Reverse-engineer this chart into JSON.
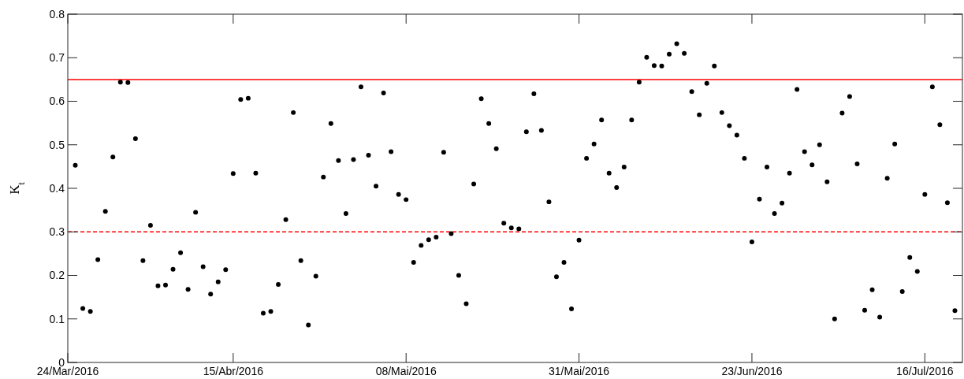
{
  "chart_data": {
    "type": "scatter",
    "ylabel": "K$_{t}$",
    "marker": "circle",
    "grid": false,
    "x": [
      "2016-03-25",
      "2016-03-26",
      "2016-03-27",
      "2016-03-28",
      "2016-03-29",
      "2016-03-30",
      "2016-03-31",
      "2016-04-01",
      "2016-04-02",
      "2016-04-03",
      "2016-04-04",
      "2016-04-05",
      "2016-04-06",
      "2016-04-07",
      "2016-04-08",
      "2016-04-09",
      "2016-04-10",
      "2016-04-11",
      "2016-04-12",
      "2016-04-13",
      "2016-04-14",
      "2016-04-15",
      "2016-04-16",
      "2016-04-17",
      "2016-04-18",
      "2016-04-19",
      "2016-04-20",
      "2016-04-21",
      "2016-04-22",
      "2016-04-23",
      "2016-04-24",
      "2016-04-25",
      "2016-04-26",
      "2016-04-27",
      "2016-04-28",
      "2016-04-29",
      "2016-04-30",
      "2016-05-01",
      "2016-05-02",
      "2016-05-03",
      "2016-05-04",
      "2016-05-05",
      "2016-05-06",
      "2016-05-07",
      "2016-05-08",
      "2016-05-09",
      "2016-05-10",
      "2016-05-11",
      "2016-05-12",
      "2016-05-13",
      "2016-05-14",
      "2016-05-15",
      "2016-05-16",
      "2016-05-17",
      "2016-05-18",
      "2016-05-19",
      "2016-05-20",
      "2016-05-21",
      "2016-05-22",
      "2016-05-23",
      "2016-05-24",
      "2016-05-25",
      "2016-05-26",
      "2016-05-27",
      "2016-05-28",
      "2016-05-29",
      "2016-05-30",
      "2016-05-31",
      "2016-06-01",
      "2016-06-02",
      "2016-06-03",
      "2016-06-04",
      "2016-06-05",
      "2016-06-06",
      "2016-06-07",
      "2016-06-08",
      "2016-06-09",
      "2016-06-10",
      "2016-06-11",
      "2016-06-12",
      "2016-06-13",
      "2016-06-14",
      "2016-06-15",
      "2016-06-16",
      "2016-06-17",
      "2016-06-18",
      "2016-06-19",
      "2016-06-20",
      "2016-06-21",
      "2016-06-22",
      "2016-06-23",
      "2016-06-24",
      "2016-06-25",
      "2016-06-26",
      "2016-06-27",
      "2016-06-28",
      "2016-06-29",
      "2016-06-30",
      "2016-07-01",
      "2016-07-02",
      "2016-07-03",
      "2016-07-04",
      "2016-07-05",
      "2016-07-06",
      "2016-07-07",
      "2016-07-08",
      "2016-07-09",
      "2016-07-10",
      "2016-07-11",
      "2016-07-12",
      "2016-07-13",
      "2016-07-14",
      "2016-07-15",
      "2016-07-16",
      "2016-07-17",
      "2016-07-18",
      "2016-07-19",
      "2016-07-20"
    ],
    "series": [
      {
        "color": "#000000",
        "values": [
          0.453,
          0.124,
          0.117,
          0.236,
          0.347,
          0.472,
          0.644,
          0.643,
          0.514,
          0.234,
          0.315,
          0.176,
          0.178,
          0.214,
          0.252,
          0.168,
          0.345,
          0.22,
          0.157,
          0.185,
          0.213,
          0.434,
          0.604,
          0.607,
          0.435,
          0.113,
          0.117,
          0.179,
          0.328,
          0.574,
          0.234,
          0.086,
          0.198,
          0.426,
          0.549,
          0.464,
          0.342,
          0.466,
          0.633,
          0.476,
          0.405,
          0.619,
          0.484,
          0.386,
          0.374,
          0.23,
          0.269,
          0.282,
          0.288,
          0.483,
          0.296,
          0.2,
          0.135,
          0.41,
          0.606,
          0.549,
          0.491,
          0.32,
          0.309,
          0.307,
          0.53,
          0.617,
          0.533,
          0.369,
          0.197,
          0.23,
          0.123,
          0.281,
          0.469,
          0.502,
          0.557,
          0.435,
          0.402,
          0.449,
          0.557,
          0.644,
          0.701,
          0.682,
          0.681,
          0.708,
          0.732,
          0.71,
          0.622,
          0.569,
          0.641,
          0.681,
          0.574,
          0.544,
          0.522,
          0.469,
          0.277,
          0.375,
          0.449,
          0.342,
          0.366,
          0.435,
          0.627,
          0.484,
          0.454,
          0.5,
          0.415,
          0.1,
          0.573,
          0.611,
          0.456,
          0.12,
          0.167,
          0.104,
          0.423,
          0.502,
          0.163,
          0.241,
          0.209,
          0.386,
          0.633,
          0.546,
          0.367,
          0.119
        ]
      }
    ],
    "xlim": [
      "2016-03-24",
      "2016-07-21"
    ],
    "xticks": [
      {
        "value": "2016-03-24",
        "label": "24/Mar/2016"
      },
      {
        "value": "2016-04-15",
        "label": "15/Abr/2016"
      },
      {
        "value": "2016-05-08",
        "label": "08/Mai/2016"
      },
      {
        "value": "2016-05-31",
        "label": "31/Mai/2016"
      },
      {
        "value": "2016-06-23",
        "label": "23/Jun/2016"
      },
      {
        "value": "2016-07-16",
        "label": "16/Jul/2016"
      }
    ],
    "ylim": [
      0,
      0.8
    ],
    "yticks": [
      0,
      0.1,
      0.2,
      0.3,
      0.4,
      0.5,
      0.6,
      0.7,
      0.8
    ],
    "ref_lines": [
      {
        "axis": "y",
        "value": 0.65,
        "color": "#ff0000",
        "line_style": "solid"
      },
      {
        "axis": "y",
        "value": 0.3,
        "color": "#ff0000",
        "line_style": "dashed"
      }
    ]
  }
}
